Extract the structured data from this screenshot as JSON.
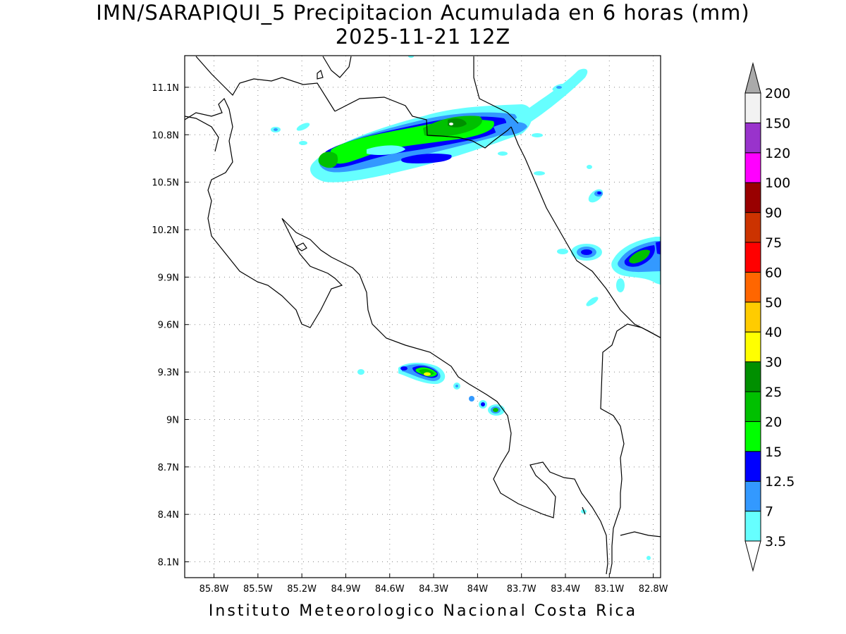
{
  "header": {
    "title_line1": "IMN/SARAPIQUI_5 Precipitacion Acumulada en 6 horas (mm)",
    "title_line2": "2025-11-21 12Z"
  },
  "footer": {
    "text": "Instituto Meteorologico Nacional Costa Rica"
  },
  "axes": {
    "lat_labels": [
      "11.1N",
      "10.8N",
      "10.5N",
      "10.2N",
      "9.9N",
      "9.6N",
      "9.3N",
      "9N",
      "8.7N",
      "8.4N",
      "8.1N"
    ],
    "lon_labels": [
      "85.8W",
      "85.5W",
      "85.2W",
      "84.9W",
      "84.6W",
      "84.3W",
      "84W",
      "83.7W",
      "83.4W",
      "83.1W",
      "82.8W"
    ],
    "lat_range": [
      8.0,
      11.3
    ],
    "lon_range": [
      -86.0,
      -82.75
    ]
  },
  "legend": {
    "levels": [
      "3.5",
      "7",
      "12.5",
      "15",
      "20",
      "25",
      "30",
      "40",
      "50",
      "60",
      "75",
      "90",
      "100",
      "120",
      "150",
      "200"
    ],
    "colors": [
      "#66ffff",
      "#3399ff",
      "#0000ff",
      "#00ff00",
      "#00c000",
      "#008f00",
      "#ffff00",
      "#ffcc00",
      "#ff6600",
      "#ff0000",
      "#cc3300",
      "#990000",
      "#ff00ff",
      "#9933cc",
      "#f2f2f2",
      "#aaaaaa"
    ]
  },
  "colors": {
    "coast": "#000000",
    "grid": "#888888"
  }
}
